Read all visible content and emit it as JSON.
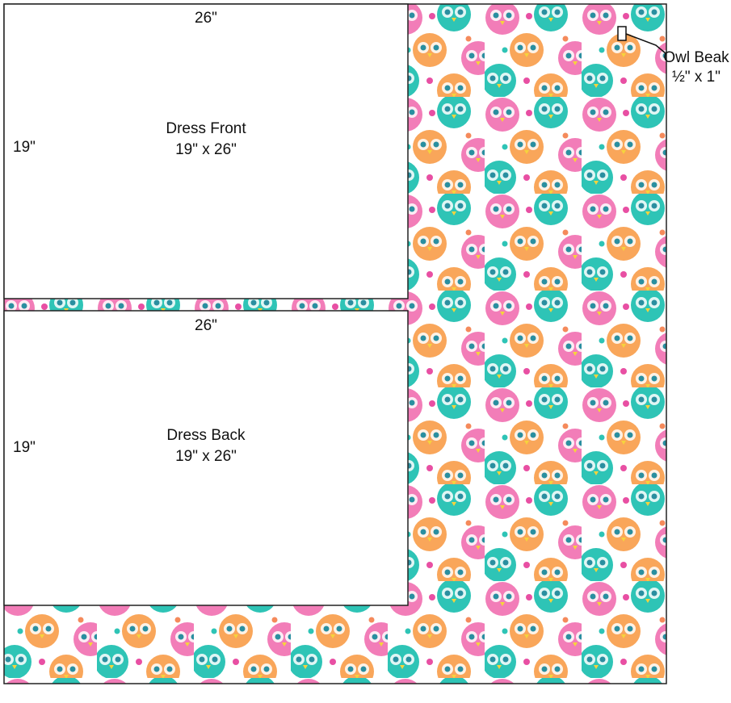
{
  "pieces": [
    {
      "label": "Dress Front",
      "size": "19\" x 26\"",
      "width": "26\"",
      "height": "19\""
    },
    {
      "label": "Dress Back",
      "size": "19\" x 26\"",
      "width": "26\"",
      "height": "19\""
    }
  ],
  "beak": {
    "label": "Owl Beak",
    "size": "½\" x 1\""
  }
}
